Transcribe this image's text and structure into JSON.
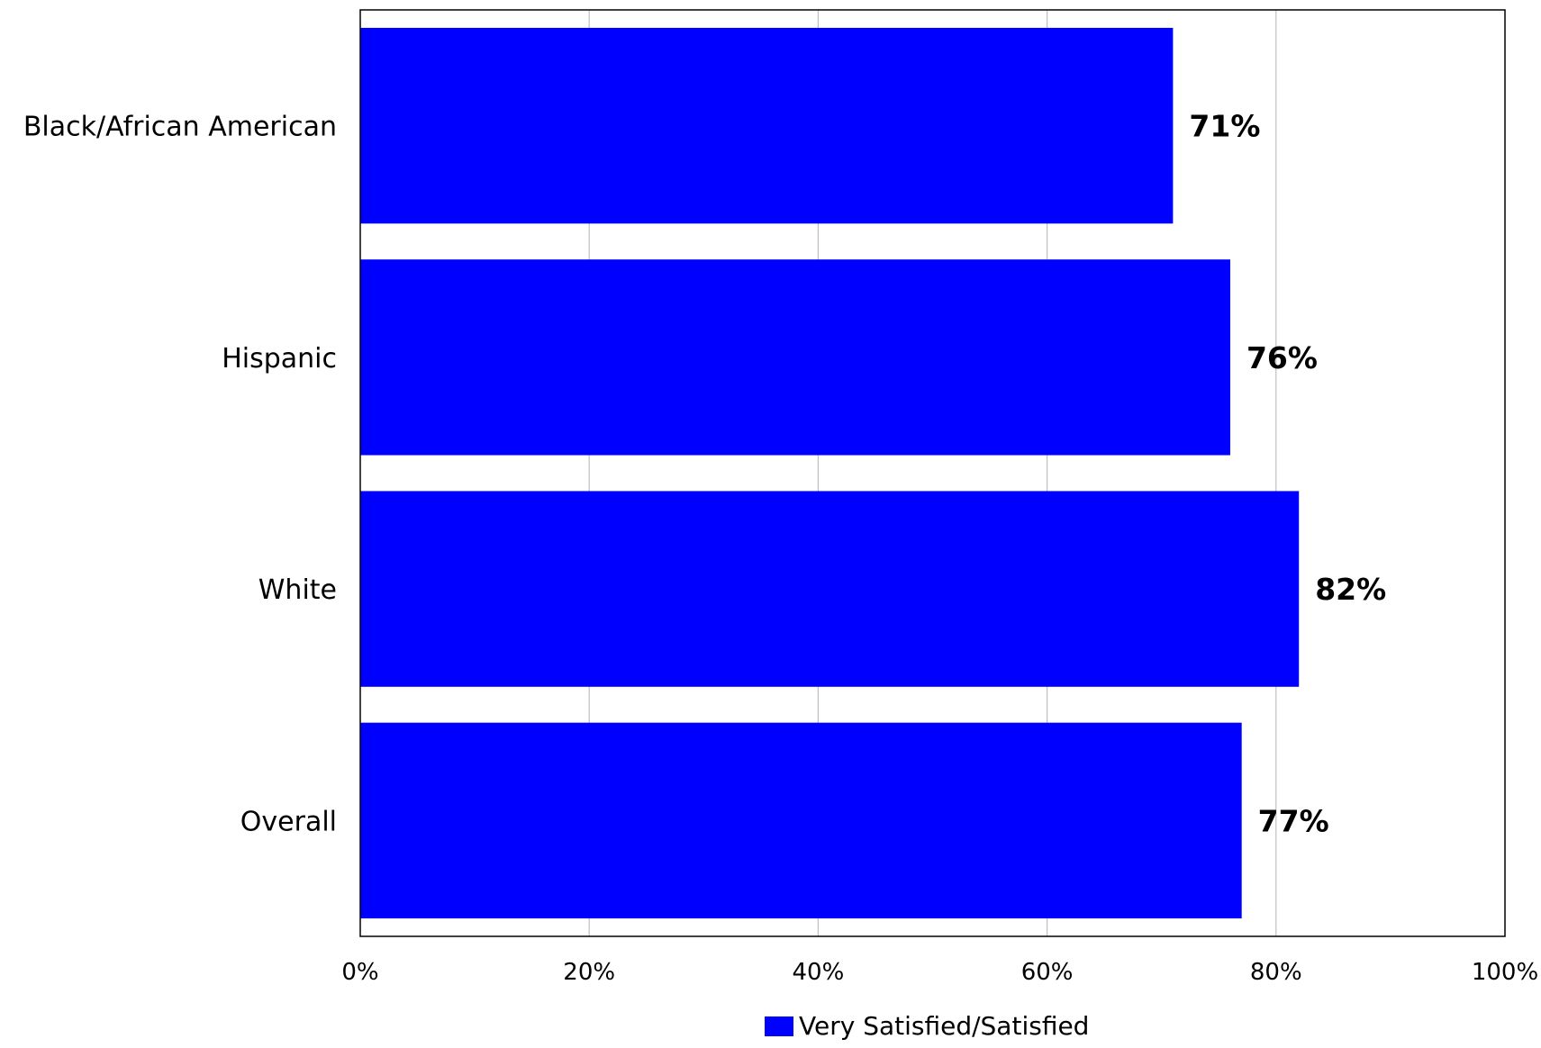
{
  "chart_data": {
    "type": "bar",
    "orientation": "horizontal",
    "categories": [
      "Black/African American",
      "Hispanic",
      "White",
      "Overall"
    ],
    "series": [
      {
        "name": "Very Satisfied/Satisfied",
        "values": [
          71,
          76,
          82,
          77
        ],
        "color": "#0000ff"
      }
    ],
    "data_labels": [
      "71%",
      "76%",
      "82%",
      "77%"
    ],
    "xlim": [
      0,
      100
    ],
    "x_ticks": [
      0,
      20,
      40,
      60,
      80,
      100
    ],
    "x_tick_labels": [
      "0%",
      "20%",
      "40%",
      "60%",
      "80%",
      "100%"
    ],
    "title": "",
    "xlabel": "",
    "ylabel": "",
    "grid": "vertical",
    "gridline_color": "#bfbfbf",
    "legend": {
      "position": "bottom",
      "entries": [
        "Very Satisfied/Satisfied"
      ]
    }
  }
}
